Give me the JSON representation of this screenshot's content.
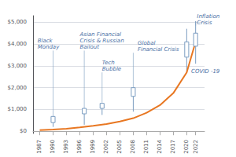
{
  "chart_data": {
    "type": "line",
    "x": [
      1987,
      1990,
      1993,
      1996,
      1999,
      2002,
      2005,
      2008,
      2011,
      2014,
      2017,
      2020,
      2022
    ],
    "values": [
      50,
      80,
      120,
      175,
      250,
      330,
      450,
      600,
      850,
      1200,
      1750,
      2700,
      4100
    ],
    "color": "#E87722",
    "xlim": [
      1985.5,
      2024
    ],
    "xticks": [
      1987,
      1990,
      1993,
      1996,
      1999,
      2002,
      2005,
      2008,
      2011,
      2014,
      2017,
      2020,
      2022
    ],
    "ylim": [
      -100,
      5300
    ],
    "yticks": [
      {
        "value": 0,
        "label": "$0"
      },
      {
        "value": 1000,
        "label": "$1,000"
      },
      {
        "value": 2000,
        "label": "$2,000"
      },
      {
        "value": 3000,
        "label": "$3,000"
      },
      {
        "value": 4000,
        "label": "$4,000"
      },
      {
        "value": 5000,
        "label": "$5,000"
      }
    ],
    "grid": true,
    "events": [
      {
        "label": "Black\nMonday",
        "x": 1990,
        "box_low": 400,
        "box_high": 680,
        "whisker_low": 200,
        "whisker_high": 680,
        "label_x": 1986.5,
        "label_y": 3700,
        "connector": true,
        "color": "#7A9CC0"
      },
      {
        "label": "Asian Financial\nCrisis & Russian\nBailout",
        "x": 1997,
        "box_low": 800,
        "box_high": 1050,
        "whisker_low": 300,
        "whisker_high": 1050,
        "label_x": 1996,
        "label_y": 3700,
        "connector": true,
        "color": "#7A9CC0"
      },
      {
        "label": "Tech\nBubble",
        "x": 2001,
        "box_low": 1050,
        "box_high": 1280,
        "whisker_low": 750,
        "whisker_high": 1280,
        "label_x": 2001,
        "label_y": 2700,
        "connector": true,
        "color": "#7A9CC0"
      },
      {
        "label": "Global\nFinancial Crisis",
        "x": 2008,
        "box_low": 1600,
        "box_high": 2000,
        "whisker_low": 900,
        "whisker_high": 2000,
        "label_x": 2009,
        "label_y": 3600,
        "connector": true,
        "color": "#7A9CC0"
      },
      {
        "label": "COVID -19",
        "x": 2020,
        "box_low": 3400,
        "box_high": 4100,
        "whisker_low": 2700,
        "whisker_high": 4700,
        "label_x": 2021,
        "label_y": 2600,
        "connector": false,
        "color": "#7A9CC0"
      },
      {
        "label": "Inflation\nCrisis",
        "x": 2022,
        "box_low": 3900,
        "box_high": 4500,
        "whisker_low": 3100,
        "whisker_high": 5050,
        "label_x": 2022.3,
        "label_y": 4850,
        "connector": true,
        "color": "#7A9CC0"
      }
    ]
  }
}
